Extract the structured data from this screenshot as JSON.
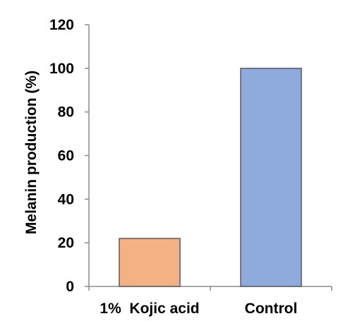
{
  "chart_data": {
    "type": "bar",
    "categories": [
      "1%  Kojic acid",
      "Control"
    ],
    "values": [
      22,
      100
    ],
    "ylabel": "Melanin production (%)",
    "xlabel": "",
    "ylim": [
      0,
      120
    ],
    "yticks": [
      0,
      20,
      40,
      60,
      80,
      100,
      120
    ],
    "bar_colors": [
      "#F4B183",
      "#8FAADC"
    ],
    "bar_edge_color": "#595959",
    "grid": false,
    "legend": "none"
  }
}
